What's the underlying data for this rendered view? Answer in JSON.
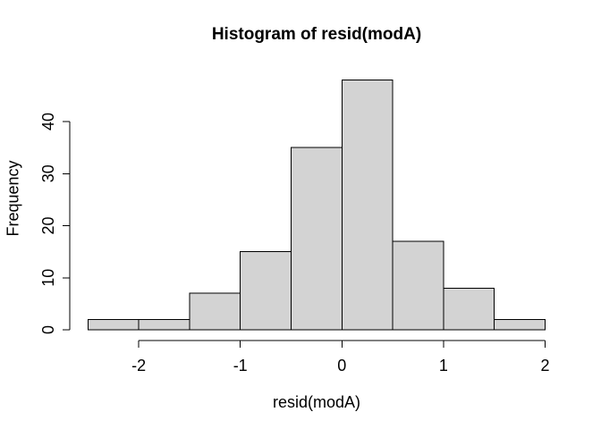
{
  "window": {
    "background_color": "#ffffff"
  },
  "chart": {
    "title": "Histogram of resid(modA)",
    "xlabel": "resid(modA)",
    "ylabel": "Frequency"
  },
  "chart_data": {
    "type": "bar",
    "subtype": "histogram",
    "title": "Histogram of resid(modA)",
    "xlabel": "resid(modA)",
    "ylabel": "Frequency",
    "breaks": [
      -2.5,
      -2.0,
      -1.5,
      -1.0,
      -0.5,
      0.0,
      0.5,
      1.0,
      1.5,
      2.0
    ],
    "counts": [
      2,
      2,
      7,
      15,
      35,
      48,
      17,
      8,
      2
    ],
    "categories": [
      "[-2.5,-2)",
      "[-2,-1.5)",
      "[-1.5,-1)",
      "[-1,-0.5)",
      "[-0.5,0)",
      "[0,0.5)",
      "[0.5,1)",
      "[1,1.5)",
      "[1.5,2)"
    ],
    "values": [
      2,
      2,
      7,
      15,
      35,
      48,
      17,
      8,
      2
    ],
    "x_ticks": [
      -2,
      -1,
      0,
      1,
      2
    ],
    "y_ticks": [
      0,
      10,
      20,
      30,
      40
    ],
    "xlim": [
      -2.5,
      2.0
    ],
    "ylim": [
      0,
      48
    ],
    "grid": false,
    "legend_position": "none",
    "bar_fill": "#d3d3d3",
    "bar_border": "#000000",
    "axis_color": "#000000",
    "text_color": "#000000"
  }
}
